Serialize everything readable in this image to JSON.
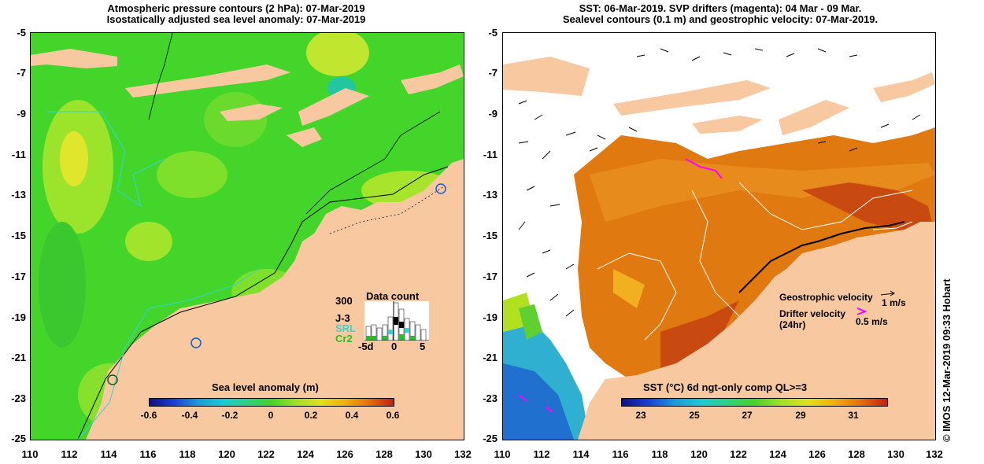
{
  "left": {
    "title_line1": "Atmospheric pressure contours (2 hPa): 07-Mar-2019",
    "title_line2": "Isostatically adjusted sea level anomaly: 07-Mar-2019",
    "y_ticks": [
      "-5",
      "-7",
      "-9",
      "-11",
      "-13",
      "-15",
      "-17",
      "-19",
      "-21",
      "-23",
      "-25"
    ],
    "x_ticks": [
      "110",
      "112",
      "114",
      "116",
      "118",
      "120",
      "122",
      "124",
      "126",
      "128",
      "130",
      "132"
    ],
    "colorbar_label": "Sea level anomaly (m)",
    "colorbar_ticks": [
      "-0.6",
      "-0.4",
      "-0.2",
      "0",
      "0.2",
      "0.4",
      "0.6"
    ],
    "data_count": {
      "title": "Data count",
      "y_max": "300",
      "items": [
        {
          "label": "J-3",
          "color": "#000000"
        },
        {
          "label": "SRL",
          "color": "#2fd6d6"
        },
        {
          "label": "Cr2",
          "color": "#22c322"
        }
      ],
      "x_labels": [
        "-5d",
        "0",
        "5"
      ]
    }
  },
  "right": {
    "title_line1": "SST: 06-Mar-2019. SVP drifters (magenta): 04 Mar - 09 Mar.",
    "title_line2": "Sealevel contours (0.1 m) and geostrophic velocity: 07-Mar-2019.",
    "y_ticks": [
      "-5",
      "-7",
      "-9",
      "-11",
      "-13",
      "-15",
      "-17",
      "-19",
      "-21",
      "-23",
      "-25"
    ],
    "x_ticks": [
      "110",
      "112",
      "114",
      "116",
      "118",
      "120",
      "122",
      "124",
      "126",
      "128",
      "130",
      "132"
    ],
    "colorbar_label": "SST (°C) 6d ngt-only comp QL>=3",
    "colorbar_ticks": [
      "23",
      "25",
      "27",
      "29",
      "31"
    ],
    "legend": {
      "geostrophic": "Geostrophic velocity",
      "geostrophic_scale": "1 m/s",
      "drifter_line1": "Drifter velocity",
      "drifter_line2": "(24hr)",
      "drifter_scale": "0.5 m/s"
    }
  },
  "credit": "© IMOS 12-Mar-2019 09:33 Hobart",
  "colors": {
    "land": "#f8c8a0",
    "ocean_green": "#4cd62c",
    "sst_orange": "#e07a10",
    "magenta": "#ff00ff"
  }
}
